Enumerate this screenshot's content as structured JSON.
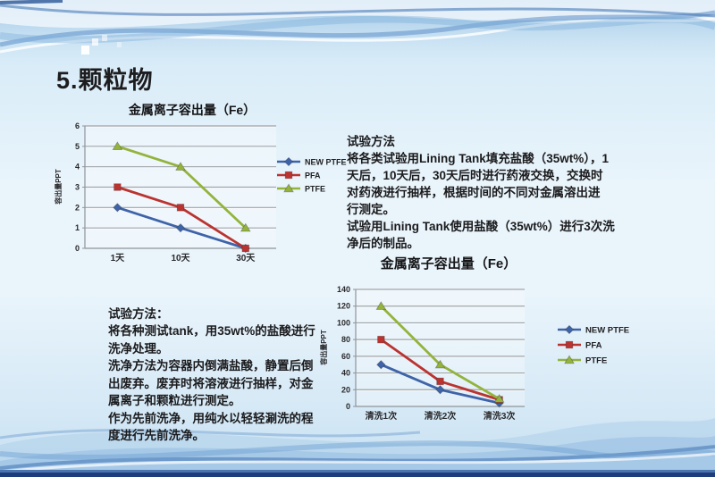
{
  "slide": {
    "title": "5.颗粒物"
  },
  "method_top": {
    "heading": "试验方法",
    "body": "将各类试验用Lining Tank填充盐酸（35wt%），1\n天后，10天后，30天后时进行药液交换，交换时\n对药液进行抽样，根据时间的不同对金属溶出进\n行测定。\n试验用Lining Tank使用盐酸（35wt%）进行3次洗\n净后的制品。"
  },
  "method_bottom": {
    "heading": "试验方法：",
    "body": "将各种测试tank，用35wt%的盐酸进行\n洗净处理。\n洗净方法为容器内倒满盐酸，静置后倒\n出废弃。废弃时将溶液进行抽样，对金\n属离子和颗粒进行测定。\n作为先前洗净，用纯水以轻轻涮洗的程\n度进行先前洗净。"
  },
  "colors": {
    "new_ptfe": "#3e63a8",
    "pfa": "#bb3330",
    "ptfe": "#93b33d",
    "grid": "#9fa4a9",
    "axis": "#8f9499",
    "navy_strip": "#1d3c7c",
    "text": "#1b1b1d"
  },
  "chart_data": [
    {
      "type": "line",
      "title": "金属离子容出量（Fe）",
      "ylabel": "容出量PPT",
      "xlabel": "",
      "categories": [
        "1天",
        "10天",
        "30天"
      ],
      "series": [
        {
          "name": "NEW PTFE",
          "values": [
            2,
            1,
            0
          ],
          "color": "#3e63a8",
          "marker": "diamond"
        },
        {
          "name": "PFA",
          "values": [
            3,
            2,
            0
          ],
          "color": "#bb3330",
          "marker": "square"
        },
        {
          "name": "PTFE",
          "values": [
            5,
            4,
            1
          ],
          "color": "#93b33d",
          "marker": "triangle"
        }
      ],
      "ylim": [
        0,
        6
      ],
      "ytick": 1,
      "grid": true,
      "legend_position": "right"
    },
    {
      "type": "line",
      "title": "金属离子容出量（Fe）",
      "ylabel": "容出量PPT",
      "xlabel": "",
      "categories": [
        "清洗1次",
        "清洗2次",
        "清洗3次"
      ],
      "series": [
        {
          "name": "NEW PTFE",
          "values": [
            50,
            20,
            4
          ],
          "color": "#3e63a8",
          "marker": "diamond"
        },
        {
          "name": "PFA",
          "values": [
            80,
            30,
            8
          ],
          "color": "#bb3330",
          "marker": "square"
        },
        {
          "name": "PTFE",
          "values": [
            120,
            50,
            9
          ],
          "color": "#93b33d",
          "marker": "triangle"
        }
      ],
      "ylim": [
        0,
        140
      ],
      "ytick": 20,
      "grid": true,
      "legend_position": "right"
    }
  ]
}
